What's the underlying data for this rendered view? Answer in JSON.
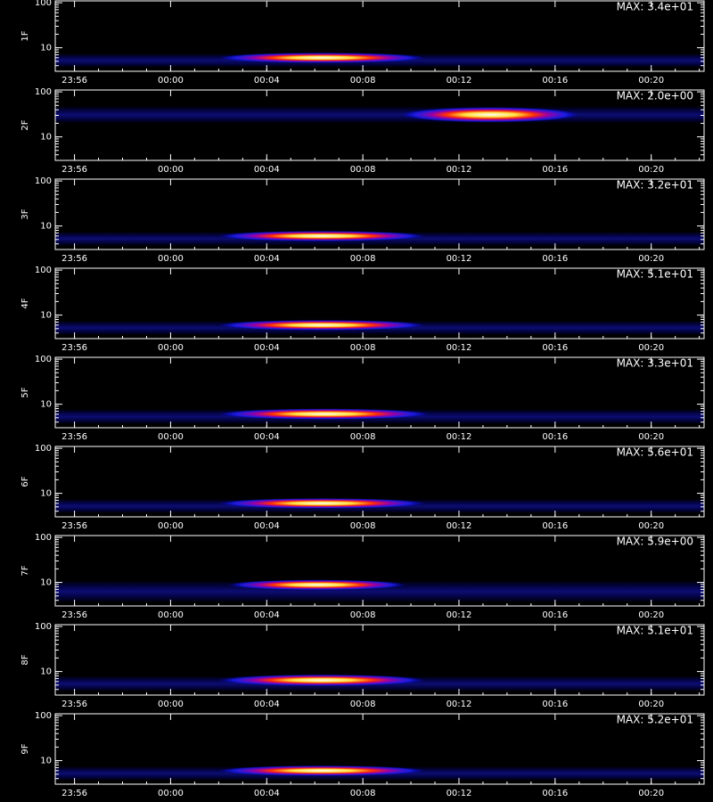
{
  "chart_data": [
    {
      "type": "heatmap",
      "ylabel": "1F",
      "annotation": "MAX: 3.4e+01",
      "log_y": true,
      "xlim": [
        -4.8,
        22.2
      ],
      "xticks": [
        {
          "value": -4,
          "label": "23:56"
        },
        {
          "value": 0,
          "label": "00:00"
        },
        {
          "value": 4,
          "label": "00:04"
        },
        {
          "value": 8,
          "label": "00:08"
        },
        {
          "value": 12,
          "label": "00:12"
        },
        {
          "value": 16,
          "label": "00:16"
        },
        {
          "value": 20,
          "label": "00:20"
        }
      ],
      "ylim": [
        3,
        110
      ],
      "yticks": [
        10,
        100
      ],
      "band": [
        3.6,
        7.5
      ],
      "regions": [
        {
          "x": [
            2,
            10.6
          ],
          "y": [
            4.6,
            7.8
          ]
        }
      ]
    },
    {
      "type": "heatmap",
      "ylabel": "2F",
      "annotation": "MAX: 2.0e+00",
      "log_y": true,
      "xlim": [
        -4.8,
        22.2
      ],
      "xticks": [
        {
          "value": -4,
          "label": "23:56"
        },
        {
          "value": 0,
          "label": "00:00"
        },
        {
          "value": 4,
          "label": "00:04"
        },
        {
          "value": 8,
          "label": "00:08"
        },
        {
          "value": 12,
          "label": "00:12"
        },
        {
          "value": 16,
          "label": "00:16"
        },
        {
          "value": 20,
          "label": "00:20"
        }
      ],
      "ylim": [
        3,
        110
      ],
      "yticks": [
        10,
        100
      ],
      "band": [
        20,
        48
      ],
      "regions": [
        {
          "x": [
            9.6,
            17
          ],
          "y": [
            21,
            46
          ]
        }
      ]
    },
    {
      "type": "heatmap",
      "ylabel": "3F",
      "annotation": "MAX: 3.2e+01",
      "log_y": true,
      "xlim": [
        -4.8,
        22.2
      ],
      "xticks": [
        {
          "value": -4,
          "label": "23:56"
        },
        {
          "value": 0,
          "label": "00:00"
        },
        {
          "value": 4,
          "label": "00:04"
        },
        {
          "value": 8,
          "label": "00:08"
        },
        {
          "value": 12,
          "label": "00:12"
        },
        {
          "value": 16,
          "label": "00:16"
        },
        {
          "value": 20,
          "label": "00:20"
        }
      ],
      "ylim": [
        3,
        110
      ],
      "yticks": [
        10,
        100
      ],
      "band": [
        3.6,
        7.5
      ],
      "regions": [
        {
          "x": [
            2,
            10.6
          ],
          "y": [
            4.6,
            7.8
          ]
        }
      ]
    },
    {
      "type": "heatmap",
      "ylabel": "4F",
      "annotation": "MAX: 5.1e+01",
      "log_y": true,
      "xlim": [
        -4.8,
        22.2
      ],
      "xticks": [
        {
          "value": -4,
          "label": "23:56"
        },
        {
          "value": 0,
          "label": "00:00"
        },
        {
          "value": 4,
          "label": "00:04"
        },
        {
          "value": 8,
          "label": "00:08"
        },
        {
          "value": 12,
          "label": "00:12"
        },
        {
          "value": 16,
          "label": "00:16"
        },
        {
          "value": 20,
          "label": "00:20"
        }
      ],
      "ylim": [
        3,
        110
      ],
      "yticks": [
        10,
        100
      ],
      "band": [
        3.6,
        7.5
      ],
      "regions": [
        {
          "x": [
            2,
            10.6
          ],
          "y": [
            4.6,
            7.8
          ]
        }
      ]
    },
    {
      "type": "heatmap",
      "ylabel": "5F",
      "annotation": "MAX: 3.3e+01",
      "log_y": true,
      "xlim": [
        -4.8,
        22.2
      ],
      "xticks": [
        {
          "value": -4,
          "label": "23:56"
        },
        {
          "value": 0,
          "label": "00:00"
        },
        {
          "value": 4,
          "label": "00:04"
        },
        {
          "value": 8,
          "label": "00:08"
        },
        {
          "value": 12,
          "label": "00:12"
        },
        {
          "value": 16,
          "label": "00:16"
        },
        {
          "value": 20,
          "label": "00:20"
        }
      ],
      "ylim": [
        3,
        110
      ],
      "yticks": [
        10,
        100
      ],
      "band": [
        3.6,
        7.8
      ],
      "regions": [
        {
          "x": [
            2,
            10.8
          ],
          "y": [
            4.6,
            8
          ]
        }
      ]
    },
    {
      "type": "heatmap",
      "ylabel": "6F",
      "annotation": "MAX: 5.6e+01",
      "log_y": true,
      "xlim": [
        -4.8,
        22.2
      ],
      "xticks": [
        {
          "value": -4,
          "label": "23:56"
        },
        {
          "value": 0,
          "label": "00:00"
        },
        {
          "value": 4,
          "label": "00:04"
        },
        {
          "value": 8,
          "label": "00:08"
        },
        {
          "value": 12,
          "label": "00:12"
        },
        {
          "value": 16,
          "label": "00:16"
        },
        {
          "value": 20,
          "label": "00:20"
        }
      ],
      "ylim": [
        3,
        110
      ],
      "yticks": [
        10,
        100
      ],
      "band": [
        3.6,
        7.5
      ],
      "regions": [
        {
          "x": [
            2,
            10.6
          ],
          "y": [
            4.6,
            7.8
          ]
        }
      ]
    },
    {
      "type": "heatmap",
      "ylabel": "7F",
      "annotation": "MAX: 5.9e+00",
      "log_y": true,
      "xlim": [
        -4.8,
        22.2
      ],
      "xticks": [
        {
          "value": -4,
          "label": "23:56"
        },
        {
          "value": 0,
          "label": "00:00"
        },
        {
          "value": 4,
          "label": "00:04"
        },
        {
          "value": 8,
          "label": "00:08"
        },
        {
          "value": 12,
          "label": "00:12"
        },
        {
          "value": 16,
          "label": "00:16"
        },
        {
          "value": 20,
          "label": "00:20"
        }
      ],
      "ylim": [
        3,
        110
      ],
      "yticks": [
        10,
        100
      ],
      "band": [
        3.6,
        11
      ],
      "regions": [
        {
          "x": [
            2.4,
            9.8
          ],
          "y": [
            6.8,
            11.5
          ]
        }
      ]
    },
    {
      "type": "heatmap",
      "ylabel": "8F",
      "annotation": "MAX: 5.1e+01",
      "log_y": true,
      "xlim": [
        -4.8,
        22.2
      ],
      "xticks": [
        {
          "value": -4,
          "label": "23:56"
        },
        {
          "value": 0,
          "label": "00:00"
        },
        {
          "value": 4,
          "label": "00:04"
        },
        {
          "value": 8,
          "label": "00:08"
        },
        {
          "value": 12,
          "label": "00:12"
        },
        {
          "value": 16,
          "label": "00:16"
        },
        {
          "value": 20,
          "label": "00:20"
        }
      ],
      "ylim": [
        3,
        110
      ],
      "yticks": [
        10,
        100
      ],
      "band": [
        3.6,
        8
      ],
      "regions": [
        {
          "x": [
            2,
            10.6
          ],
          "y": [
            4.8,
            8.6
          ]
        }
      ]
    },
    {
      "type": "heatmap",
      "ylabel": "9F",
      "annotation": "MAX: 5.2e+01",
      "log_y": true,
      "xlim": [
        -4.8,
        22.2
      ],
      "xticks": [
        {
          "value": -4,
          "label": "23:56"
        },
        {
          "value": 0,
          "label": "00:00"
        },
        {
          "value": 4,
          "label": "00:04"
        },
        {
          "value": 8,
          "label": "00:08"
        },
        {
          "value": 12,
          "label": "00:12"
        },
        {
          "value": 16,
          "label": "00:16"
        },
        {
          "value": 20,
          "label": "00:20"
        }
      ],
      "ylim": [
        3,
        110
      ],
      "yticks": [
        10,
        100
      ],
      "band": [
        3.6,
        7.5
      ],
      "regions": [
        {
          "x": [
            2,
            10.6
          ],
          "y": [
            4.6,
            7.8
          ]
        }
      ]
    }
  ]
}
